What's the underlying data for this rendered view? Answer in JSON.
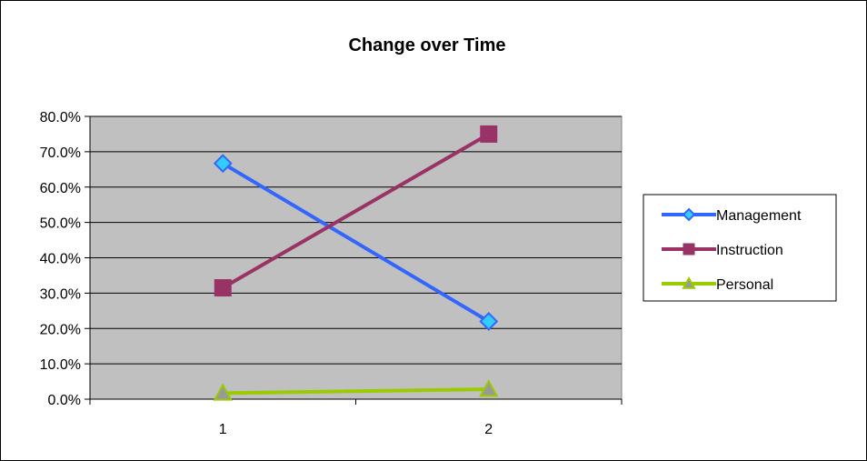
{
  "chart_data": {
    "type": "line",
    "title": "Change over Time",
    "xlabel": "",
    "ylabel": "",
    "x": [
      "1",
      "2"
    ],
    "ylim": [
      0,
      0.8
    ],
    "y_ticks": [
      "0.0%",
      "10.0%",
      "20.0%",
      "30.0%",
      "40.0%",
      "50.0%",
      "60.0%",
      "70.0%",
      "80.0%"
    ],
    "grid": true,
    "legend_position": "right",
    "plot_background": "#c0c0c0",
    "series": [
      {
        "name": "Management",
        "values": [
          0.667,
          0.22
        ],
        "color": "#3366ff",
        "marker": "diamond",
        "marker_fill": "#33ccff"
      },
      {
        "name": "Instruction",
        "values": [
          0.315,
          0.75
        ],
        "color": "#993366",
        "marker": "square",
        "marker_fill": "#993366"
      },
      {
        "name": "Personal",
        "values": [
          0.017,
          0.028
        ],
        "color": "#99cc00",
        "marker": "triangle",
        "marker_fill": "#999999"
      }
    ]
  }
}
